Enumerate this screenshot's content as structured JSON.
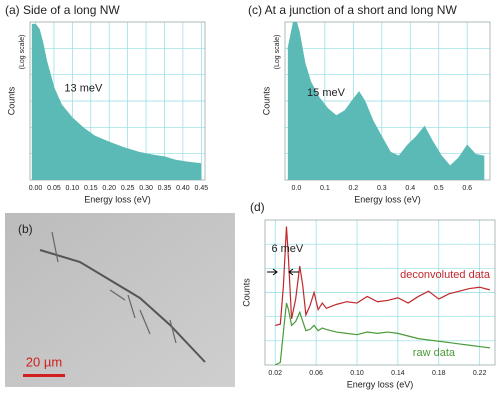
{
  "chart_data": [
    {
      "type": "area",
      "title": "(a) Side of a long NW",
      "xlabel": "Energy loss (eV)",
      "ylabel": "Counts",
      "ylabel_note": "(Log scale)",
      "annotation": "13 meV",
      "log_y": true,
      "grid": true,
      "color": "#5bbab5",
      "xlim": [
        -0.015,
        0.46
      ],
      "ylim": [
        300000,
        3000000
      ],
      "xticks": [
        {
          "value": 0,
          "label": "0.00"
        },
        0.05,
        {
          "value": 0.1,
          "label": "0.10"
        },
        0.15,
        {
          "value": 0.2,
          "label": "0.20"
        },
        0.25,
        {
          "value": 0.3,
          "label": "0.30"
        },
        0.35,
        {
          "value": 0.4,
          "label": "0.40"
        },
        0.45
      ],
      "x": [
        -0.01,
        0.0,
        0.01,
        0.02,
        0.03,
        0.05,
        0.07,
        0.1,
        0.13,
        0.16,
        0.2,
        0.24,
        0.28,
        0.32,
        0.35,
        0.38,
        0.41,
        0.45
      ],
      "values": [
        2900000,
        2900000,
        2700000,
        2200000,
        1700000,
        1150000,
        900000,
        740000,
        640000,
        570000,
        520000,
        480000,
        450000,
        430000,
        420000,
        400000,
        390000,
        380000
      ]
    },
    {
      "type": "area",
      "title": "(c) At a junction of a short and long NW",
      "xlabel": "Energy loss (eV)",
      "ylabel": "Counts",
      "ylabel_note": "(Log scale)",
      "annotation": "15 meV",
      "log_y": true,
      "grid": true,
      "color": "#5bbab5",
      "xlim": [
        -0.04,
        0.68
      ],
      "ylim": [
        20,
        2000
      ],
      "xticks": [
        {
          "value": 0,
          "label": "0.0"
        },
        0.1,
        0.2,
        0.3,
        0.4,
        0.5,
        0.6
      ],
      "x": [
        -0.03,
        -0.01,
        0.0,
        0.01,
        0.03,
        0.05,
        0.08,
        0.11,
        0.14,
        0.17,
        0.2,
        0.22,
        0.24,
        0.27,
        0.3,
        0.33,
        0.36,
        0.39,
        0.42,
        0.45,
        0.48,
        0.51,
        0.54,
        0.57,
        0.6,
        0.63,
        0.66
      ],
      "values": [
        900,
        2000,
        2000,
        1500,
        600,
        350,
        220,
        160,
        130,
        150,
        210,
        260,
        200,
        110,
        70,
        45,
        40,
        55,
        70,
        95,
        60,
        40,
        30,
        38,
        55,
        42,
        40
      ]
    },
    {
      "type": "line",
      "title": "(d)",
      "xlabel": "Energy loss (eV)",
      "ylabel": "Counts",
      "annotation": "6 meV",
      "grid": true,
      "xlim": [
        0.01,
        0.235
      ],
      "ylim": [
        0,
        1100
      ],
      "xticks": [
        0.02,
        0.06,
        {
          "value": 0.1,
          "label": "0.10"
        },
        0.14,
        0.18,
        0.22
      ],
      "x": [
        0.02,
        0.025,
        0.028,
        0.031,
        0.033,
        0.036,
        0.04,
        0.044,
        0.047,
        0.05,
        0.054,
        0.058,
        0.062,
        0.066,
        0.07,
        0.08,
        0.09,
        0.1,
        0.11,
        0.12,
        0.13,
        0.14,
        0.15,
        0.16,
        0.17,
        0.18,
        0.19,
        0.2,
        0.21,
        0.22,
        0.23
      ],
      "series": [
        {
          "name": "deconvoluted data",
          "color": "#c0282d",
          "values": [
            300,
            310,
            600,
            1050,
            800,
            350,
            500,
            750,
            600,
            380,
            450,
            550,
            420,
            470,
            430,
            460,
            480,
            470,
            520,
            480,
            490,
            510,
            470,
            520,
            560,
            500,
            540,
            560,
            580,
            590,
            570
          ]
        },
        {
          "name": "raw data",
          "color": "#4a9a3a",
          "values": [
            0,
            20,
            250,
            470,
            420,
            300,
            330,
            400,
            330,
            260,
            270,
            300,
            260,
            280,
            270,
            250,
            240,
            230,
            250,
            240,
            250,
            240,
            220,
            200,
            190,
            180,
            170,
            160,
            150,
            140,
            130
          ]
        }
      ]
    }
  ],
  "image_panel": {
    "label": "(b)",
    "scale_bar": "20 µm"
  }
}
